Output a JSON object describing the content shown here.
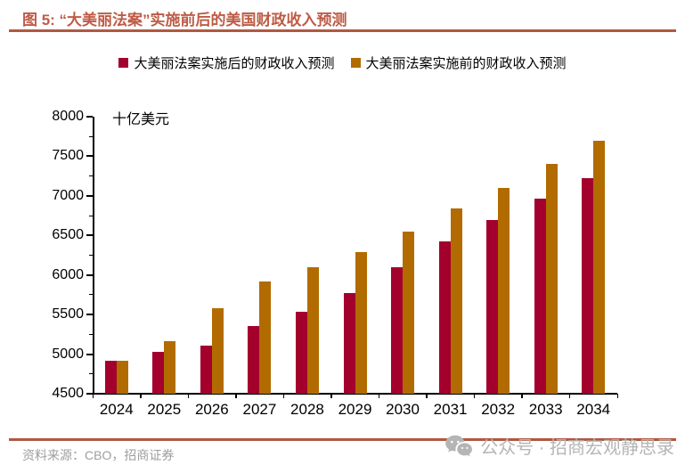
{
  "figure": {
    "title": "图 5: “大美丽法案”实施前后的美国财政收入预测"
  },
  "chart_data": {
    "type": "bar",
    "title": "图 5: “大美丽法案”实施前后的美国财政收入预测",
    "unit_label": "十亿美元",
    "categories": [
      "2024",
      "2025",
      "2026",
      "2027",
      "2028",
      "2029",
      "2030",
      "2031",
      "2032",
      "2033",
      "2034"
    ],
    "series": [
      {
        "name": "大美丽法案实施后的财政收入预测",
        "color": "#A3002D",
        "values": [
          4920,
          5030,
          5110,
          5350,
          5530,
          5770,
          6100,
          6420,
          6690,
          6960,
          7220
        ]
      },
      {
        "name": "大美丽法案实施前的财政收入预测",
        "color": "#B26B00",
        "values": [
          4920,
          5160,
          5580,
          5920,
          6100,
          6290,
          6550,
          6840,
          7100,
          7400,
          7700
        ]
      }
    ],
    "ylim": [
      4500,
      8000
    ],
    "yticks": [
      4500,
      5000,
      5500,
      6000,
      6500,
      7000,
      7500,
      8000
    ],
    "minor_ytick_step": 250,
    "grid": false,
    "legend_position": "top"
  },
  "footer": {
    "source": "资料来源：CBO，招商证券",
    "watermark": "公众号 · 招商宏观静思录"
  },
  "colors": {
    "accent_rule": "#B05840",
    "title_text": "#BE5B45",
    "after_series": "#A3002D",
    "before_series": "#B26B00",
    "watermark_gray": "#B5B5B5"
  }
}
